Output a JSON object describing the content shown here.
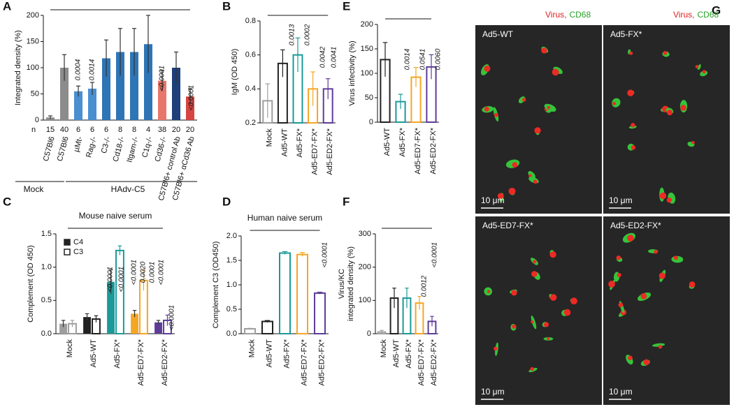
{
  "chart_data": [
    {
      "label": "A",
      "type": "bar",
      "bar_style": "filled",
      "ylabel": "Integrated density (%)",
      "categories": [
        "C57Bl6",
        "C57Bl6",
        "µMt-",
        "Rag-/-",
        "C3-/-",
        "Cd18-/-",
        "Itgam-/-",
        "C1q-/-",
        "Cd36-/-",
        "C57Bl6+ control Ab",
        "C57Bl6+ αCd36 Ab"
      ],
      "values": [
        5,
        100,
        55,
        60,
        118,
        130,
        130,
        145,
        75,
        100,
        45
      ],
      "errors": [
        3,
        25,
        10,
        12,
        35,
        45,
        45,
        55,
        20,
        30,
        15
      ],
      "colors": [
        "#8c8c8c",
        "#8c8c8c",
        "#4a8fd0",
        "#4a8fd0",
        "#2e75b6",
        "#2e75b6",
        "#2e75b6",
        "#2e75b6",
        "#e8776b",
        "#1f3f7a",
        "#d64541"
      ],
      "ylim": [
        0,
        200
      ],
      "yticks": [
        0,
        50,
        100,
        150,
        200
      ],
      "n_label": "n",
      "n": [
        15,
        40,
        6,
        6,
        6,
        8,
        8,
        4,
        38,
        20,
        20
      ],
      "groups": [
        "Mock",
        "HAdv-C5"
      ],
      "p_values": [
        {
          "text": "0.0004",
          "color": "#777777"
        },
        {
          "text": "0.0014",
          "color": "#777777"
        },
        {
          "text": "<0.0001",
          "color": "#777777"
        },
        {
          "text": "<0.0001",
          "color": "#1f3f7a"
        }
      ]
    },
    {
      "label": "B",
      "type": "bar",
      "bar_style": "open",
      "ylabel": "IgM (OD 450)",
      "categories": [
        "Mock",
        "Ad5-WT",
        "Ad5-FX*",
        "Ad5-ED7-FX*",
        "Ad5-ED2-FX*"
      ],
      "values": [
        0.33,
        0.55,
        0.6,
        0.4,
        0.4
      ],
      "errors": [
        0.1,
        0.08,
        0.1,
        0.1,
        0.06
      ],
      "colors": [
        "#9e9e9e",
        "#222222",
        "#1b9a99",
        "#f5a623",
        "#5e3c99"
      ],
      "ylim": [
        0.2,
        0.8
      ],
      "yticks": [
        0.2,
        0.4,
        0.6,
        0.8
      ],
      "p_values": [
        {
          "text": "0.0013",
          "color": "#777777"
        },
        {
          "text": "0.0002",
          "color": "#777777"
        },
        {
          "text": "0.0042",
          "color": "#1b9a99"
        },
        {
          "text": "0.0041",
          "color": "#1b9a99"
        }
      ]
    },
    {
      "label": "E",
      "type": "bar",
      "bar_style": "open",
      "ylabel": "Virus infectivity (%)",
      "categories": [
        "Ad5-WT",
        "Ad5-FX*",
        "Ad5-ED7-FX*",
        "Ad5-ED2-FX*"
      ],
      "values": [
        128,
        42,
        92,
        113
      ],
      "errors": [
        35,
        15,
        20,
        25
      ],
      "colors": [
        "#222222",
        "#1b9a99",
        "#f5a623",
        "#5e3c99"
      ],
      "ylim": [
        0,
        200
      ],
      "yticks": [
        0,
        50,
        100,
        150,
        200
      ],
      "p_values": [
        {
          "text": "0.0014",
          "color": "#222222"
        },
        {
          "text": "0.0541",
          "color": "#1b9a99"
        },
        {
          "text": "0.0060",
          "color": "#1b9a99"
        }
      ]
    },
    {
      "label": "C",
      "type": "grouped_bar",
      "title": "Mouse naive serum",
      "ylabel": "Complement (OD 450)",
      "categories": [
        "Mock",
        "Ad5-WT",
        "Ad5-FX*",
        "Ad5-ED7-FX*",
        "Ad5-ED2-FX*"
      ],
      "colors": [
        "#9e9e9e",
        "#222222",
        "#1b9a99",
        "#f5a623",
        "#5e3c99"
      ],
      "series": [
        {
          "name": "C4",
          "style": "filled",
          "values": [
            0.15,
            0.25,
            0.78,
            0.3,
            0.17
          ],
          "errors": [
            0.05,
            0.05,
            0.18,
            0.05,
            0.03
          ]
        },
        {
          "name": "C3",
          "style": "open",
          "values": [
            0.15,
            0.22,
            1.25,
            0.8,
            0.2
          ],
          "errors": [
            0.05,
            0.05,
            0.07,
            0.15,
            0.08
          ]
        }
      ],
      "ylim": [
        0,
        1.5
      ],
      "yticks": [
        {
          "value": 0,
          "label": "0.0"
        },
        0.5,
        {
          "value": 1,
          "label": "1.0"
        },
        1.5
      ],
      "p_values": [
        {
          "text": "<0.0001",
          "color": "#222222"
        },
        {
          "text": "<0.0001",
          "color": "#222222"
        },
        {
          "text": "<0.0001",
          "color": "#1b9a99"
        },
        {
          "text": "0.0020",
          "color": "#1b9a99"
        },
        {
          "text": "0.0001",
          "color": "#1b9a99"
        },
        {
          "text": "<0.0001",
          "color": "#1b9a99"
        },
        {
          "text": "<0.0001",
          "color": "#f5a623"
        }
      ]
    },
    {
      "label": "D",
      "type": "bar",
      "bar_style": "open",
      "title": "Human naive serum",
      "ylabel": "Complement C3 (OD450)",
      "categories": [
        "Mock",
        "Ad5-WT",
        "Ad5-FX*",
        "Ad5-ED7-FX*",
        "Ad5-ED2-FX*"
      ],
      "values": [
        0.1,
        0.25,
        1.65,
        1.62,
        0.83
      ],
      "errors": [
        0.01,
        0.02,
        0.03,
        0.04,
        0.02
      ],
      "colors": [
        "#9e9e9e",
        "#222222",
        "#1b9a99",
        "#f5a623",
        "#5e3c99"
      ],
      "ylim": [
        0,
        2
      ],
      "yticks": [
        {
          "value": 0,
          "label": "0.0"
        },
        0.5,
        {
          "value": 1,
          "label": "1.0"
        },
        1.5,
        {
          "value": 2,
          "label": "2.0"
        }
      ],
      "p_values": [
        {
          "text": "<0.0001",
          "color": "#1b9a99"
        }
      ]
    },
    {
      "label": "F",
      "type": "bar",
      "bar_style": "open",
      "ylabel": [
        "Virus/KC",
        "integrated density (%)"
      ],
      "categories": [
        "Mock",
        "Ad5-WT",
        "Ad5-FX*",
        "Ad5-ED7-FX*",
        "Ad5-ED2-FX*"
      ],
      "values": [
        5,
        107,
        107,
        92,
        37
      ],
      "errors": [
        5,
        30,
        30,
        20,
        15
      ],
      "colors": [
        "#9e9e9e",
        "#222222",
        "#1b9a99",
        "#f5a623",
        "#5e3c99"
      ],
      "ylim": [
        0,
        300
      ],
      "yticks": [
        0,
        100,
        200,
        300
      ],
      "p_values": [
        {
          "text": "<0.0001",
          "color": "#1b9a99"
        },
        {
          "text": "0.0012",
          "color": "#f5a623"
        }
      ]
    }
  ],
  "panel_g": {
    "label": "G",
    "header": {
      "virus": "Virus",
      "separator": ",",
      "cd68": "CD68"
    },
    "tiles": [
      {
        "title": "Ad5-WT",
        "scale": "10 μm"
      },
      {
        "title": "Ad5-FX*",
        "scale": "10 μm"
      },
      {
        "title": "Ad5-ED7-FX*",
        "scale": "10 μm"
      },
      {
        "title": "Ad5-ED2-FX*",
        "scale": "10 μm"
      }
    ]
  }
}
